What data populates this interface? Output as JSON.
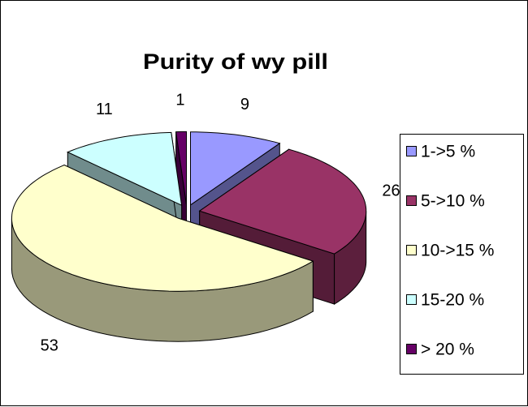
{
  "chart_data": {
    "type": "pie3d",
    "title": "Purity of wy pill",
    "categories": [
      "1->5 %",
      "5->10 %",
      "10->15 %",
      "15-20 %",
      "> 20 %"
    ],
    "values": [
      9,
      26,
      53,
      11,
      1
    ],
    "colors": [
      "#9999ff",
      "#993366",
      "#ffffcc",
      "#ccffff",
      "#660066"
    ],
    "legend": "right"
  }
}
